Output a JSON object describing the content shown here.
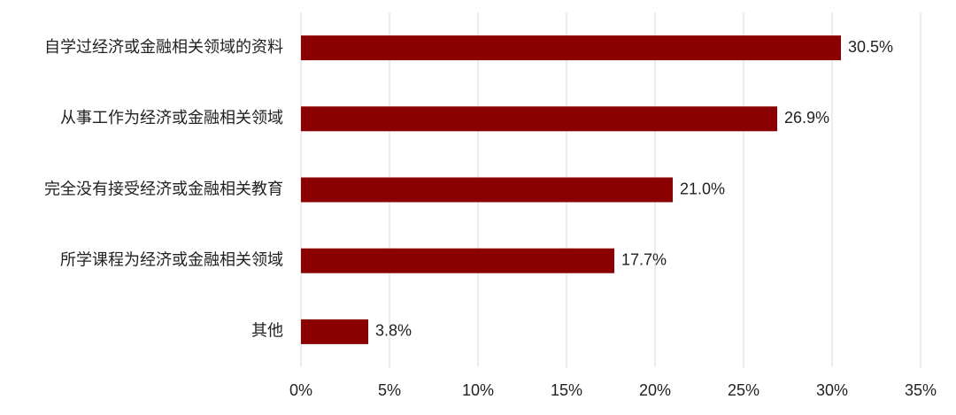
{
  "chart_data": {
    "type": "hbar",
    "categories": [
      "自学过经济或金融相关领域的资料",
      "从事工作为经济或金融相关领域",
      "完全没有接受经济或金融相关教育",
      "所学课程为经济或金融相关领域",
      "其他"
    ],
    "values": [
      30.5,
      26.9,
      21.0,
      17.7,
      3.8
    ],
    "value_labels": [
      "30.5%",
      "26.9%",
      "21.0%",
      "17.7%",
      "3.8%"
    ],
    "color": "#8b0000",
    "xlim": [
      0,
      35
    ],
    "xticks": [
      {
        "value": 0,
        "label": "0%"
      },
      {
        "value": 5,
        "label": "5%"
      },
      {
        "value": 10,
        "label": "10%"
      },
      {
        "value": 15,
        "label": "15%"
      },
      {
        "value": 20,
        "label": "20%"
      },
      {
        "value": 25,
        "label": "25%"
      },
      {
        "value": 30,
        "label": "30%"
      },
      {
        "value": 35,
        "label": "35%"
      }
    ],
    "grid": true
  }
}
